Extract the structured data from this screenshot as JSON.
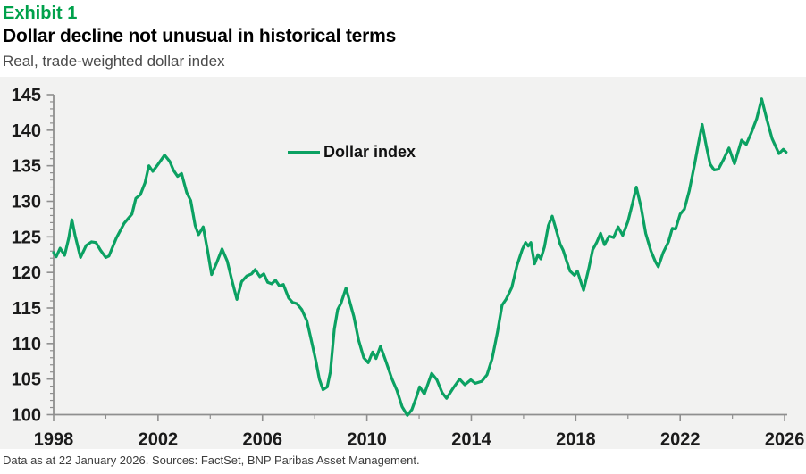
{
  "header": {
    "exhibit_label": "Exhibit 1",
    "title": "Dollar decline not unusual in historical terms",
    "subtitle": "Real, trade-weighted dollar index"
  },
  "footer": {
    "source_note": "Data as at 22 January 2026. Sources: FactSet, BNP Paribas Asset Management."
  },
  "colors": {
    "exhibit_green": "#00a14b",
    "line_green": "#0ba162",
    "axis_gray": "#8f8f8f",
    "plot_background": "#f2f2f1",
    "tick_label": "#1a1a1a"
  },
  "chart_data": {
    "type": "line",
    "title": "Real, trade-weighted dollar index",
    "xlabel": "",
    "ylabel": "",
    "xlim": [
      1998,
      2026.1
    ],
    "ylim": [
      100,
      145
    ],
    "grid": false,
    "legend_position": "inside-top-center",
    "legend": [
      {
        "label": "Dollar index",
        "color": "#0ba162"
      }
    ],
    "x_ticks_major": [
      1998,
      2002,
      2006,
      2010,
      2014,
      2018,
      2022,
      2026
    ],
    "x_ticks_minor": [
      2000,
      2004,
      2008,
      2012,
      2016,
      2020,
      2024
    ],
    "y_ticks_major": [
      100,
      105,
      110,
      115,
      120,
      125,
      130,
      135,
      140,
      145
    ],
    "y_minor_step": 1,
    "series": [
      {
        "name": "Dollar index",
        "points": [
          [
            1998.0,
            122.8
          ],
          [
            1998.1,
            122.2
          ],
          [
            1998.25,
            123.4
          ],
          [
            1998.42,
            122.4
          ],
          [
            1998.58,
            124.8
          ],
          [
            1998.7,
            127.4
          ],
          [
            1998.82,
            125.2
          ],
          [
            1999.03,
            122.1
          ],
          [
            1999.25,
            123.8
          ],
          [
            1999.45,
            124.3
          ],
          [
            1999.62,
            124.2
          ],
          [
            1999.8,
            123.1
          ],
          [
            2000.0,
            122.1
          ],
          [
            2000.12,
            122.3
          ],
          [
            2000.4,
            124.8
          ],
          [
            2000.7,
            126.9
          ],
          [
            2001.0,
            128.2
          ],
          [
            2001.15,
            130.4
          ],
          [
            2001.32,
            130.9
          ],
          [
            2001.5,
            132.6
          ],
          [
            2001.65,
            135.0
          ],
          [
            2001.8,
            134.2
          ],
          [
            2002.0,
            135.2
          ],
          [
            2002.25,
            136.5
          ],
          [
            2002.45,
            135.6
          ],
          [
            2002.6,
            134.3
          ],
          [
            2002.75,
            133.5
          ],
          [
            2002.9,
            133.9
          ],
          [
            2003.1,
            131.2
          ],
          [
            2003.25,
            130.1
          ],
          [
            2003.42,
            126.6
          ],
          [
            2003.55,
            125.3
          ],
          [
            2003.73,
            126.4
          ],
          [
            2003.9,
            123.0
          ],
          [
            2004.05,
            119.7
          ],
          [
            2004.25,
            121.4
          ],
          [
            2004.45,
            123.3
          ],
          [
            2004.65,
            121.6
          ],
          [
            2004.85,
            118.6
          ],
          [
            2005.02,
            116.2
          ],
          [
            2005.2,
            118.7
          ],
          [
            2005.4,
            119.5
          ],
          [
            2005.58,
            119.8
          ],
          [
            2005.72,
            120.4
          ],
          [
            2005.9,
            119.4
          ],
          [
            2006.05,
            119.8
          ],
          [
            2006.2,
            118.6
          ],
          [
            2006.35,
            118.4
          ],
          [
            2006.5,
            118.9
          ],
          [
            2006.65,
            118.1
          ],
          [
            2006.8,
            118.3
          ],
          [
            2007.0,
            116.4
          ],
          [
            2007.15,
            115.8
          ],
          [
            2007.32,
            115.6
          ],
          [
            2007.5,
            114.8
          ],
          [
            2007.7,
            113.2
          ],
          [
            2007.9,
            110.0
          ],
          [
            2008.05,
            107.5
          ],
          [
            2008.18,
            105.0
          ],
          [
            2008.32,
            103.5
          ],
          [
            2008.48,
            103.9
          ],
          [
            2008.6,
            106.0
          ],
          [
            2008.75,
            112.0
          ],
          [
            2008.88,
            114.8
          ],
          [
            2009.0,
            115.6
          ],
          [
            2009.2,
            117.8
          ],
          [
            2009.35,
            115.8
          ],
          [
            2009.5,
            113.8
          ],
          [
            2009.68,
            110.5
          ],
          [
            2009.88,
            108.0
          ],
          [
            2010.05,
            107.3
          ],
          [
            2010.22,
            108.8
          ],
          [
            2010.35,
            107.9
          ],
          [
            2010.52,
            109.6
          ],
          [
            2010.72,
            107.6
          ],
          [
            2010.95,
            105.1
          ],
          [
            2011.15,
            103.4
          ],
          [
            2011.35,
            101.1
          ],
          [
            2011.55,
            99.9
          ],
          [
            2011.72,
            100.7
          ],
          [
            2011.88,
            102.3
          ],
          [
            2012.02,
            103.9
          ],
          [
            2012.2,
            102.9
          ],
          [
            2012.48,
            105.8
          ],
          [
            2012.68,
            104.9
          ],
          [
            2012.88,
            103.1
          ],
          [
            2013.05,
            102.3
          ],
          [
            2013.3,
            103.7
          ],
          [
            2013.55,
            105.0
          ],
          [
            2013.75,
            104.2
          ],
          [
            2013.98,
            104.9
          ],
          [
            2014.15,
            104.4
          ],
          [
            2014.4,
            104.7
          ],
          [
            2014.6,
            105.6
          ],
          [
            2014.8,
            107.9
          ],
          [
            2015.0,
            111.6
          ],
          [
            2015.18,
            115.4
          ],
          [
            2015.33,
            116.2
          ],
          [
            2015.55,
            117.9
          ],
          [
            2015.75,
            121.0
          ],
          [
            2015.95,
            123.2
          ],
          [
            2016.08,
            124.2
          ],
          [
            2016.18,
            123.7
          ],
          [
            2016.28,
            124.2
          ],
          [
            2016.42,
            121.2
          ],
          [
            2016.55,
            122.5
          ],
          [
            2016.66,
            121.9
          ],
          [
            2016.8,
            123.6
          ],
          [
            2016.95,
            126.6
          ],
          [
            2017.1,
            127.9
          ],
          [
            2017.25,
            126.0
          ],
          [
            2017.4,
            124.0
          ],
          [
            2017.52,
            123.1
          ],
          [
            2017.65,
            121.6
          ],
          [
            2017.78,
            120.2
          ],
          [
            2017.95,
            119.6
          ],
          [
            2018.06,
            120.2
          ],
          [
            2018.3,
            117.5
          ],
          [
            2018.5,
            120.6
          ],
          [
            2018.65,
            123.2
          ],
          [
            2018.8,
            124.2
          ],
          [
            2018.95,
            125.5
          ],
          [
            2019.1,
            123.9
          ],
          [
            2019.28,
            125.1
          ],
          [
            2019.45,
            124.9
          ],
          [
            2019.62,
            126.4
          ],
          [
            2019.8,
            125.2
          ],
          [
            2020.0,
            127.2
          ],
          [
            2020.18,
            129.8
          ],
          [
            2020.32,
            132.0
          ],
          [
            2020.5,
            129.2
          ],
          [
            2020.68,
            125.5
          ],
          [
            2020.88,
            123.0
          ],
          [
            2021.05,
            121.5
          ],
          [
            2021.16,
            120.8
          ],
          [
            2021.35,
            122.8
          ],
          [
            2021.55,
            124.3
          ],
          [
            2021.7,
            126.2
          ],
          [
            2021.82,
            126.1
          ],
          [
            2022.0,
            128.2
          ],
          [
            2022.16,
            128.9
          ],
          [
            2022.35,
            131.5
          ],
          [
            2022.55,
            135.2
          ],
          [
            2022.7,
            138.2
          ],
          [
            2022.84,
            140.8
          ],
          [
            2023.0,
            137.8
          ],
          [
            2023.15,
            135.2
          ],
          [
            2023.3,
            134.4
          ],
          [
            2023.46,
            134.5
          ],
          [
            2023.65,
            135.8
          ],
          [
            2023.87,
            137.5
          ],
          [
            2024.08,
            135.3
          ],
          [
            2024.35,
            138.6
          ],
          [
            2024.53,
            138.0
          ],
          [
            2024.72,
            139.6
          ],
          [
            2024.93,
            141.6
          ],
          [
            2025.12,
            144.4
          ],
          [
            2025.32,
            141.5
          ],
          [
            2025.52,
            138.8
          ],
          [
            2025.78,
            136.7
          ],
          [
            2025.95,
            137.3
          ],
          [
            2026.06,
            136.9
          ]
        ]
      }
    ]
  }
}
